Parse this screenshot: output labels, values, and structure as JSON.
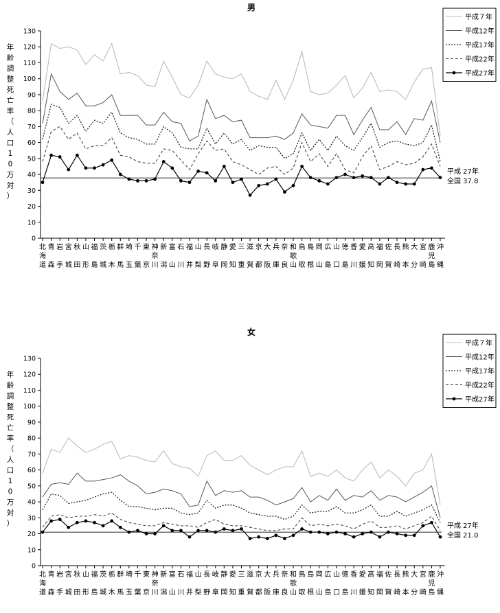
{
  "prefectures": [
    "北海道",
    "青森",
    "岩手",
    "宮城",
    "秋田",
    "山形",
    "福島",
    "茨城",
    "栃木",
    "群馬",
    "埼玉",
    "千葉",
    "東京",
    "神奈川",
    "新潟",
    "富山",
    "石川",
    "福井",
    "山梨",
    "長野",
    "岐阜",
    "静岡",
    "愛知",
    "三重",
    "滋賀",
    "京都",
    "大阪",
    "兵庫",
    "奈良",
    "和歌山",
    "鳥取",
    "島根",
    "岡山",
    "広島",
    "山口",
    "徳島",
    "香川",
    "愛媛",
    "高知",
    "福岡",
    "佐賀",
    "長崎",
    "熊本",
    "大分",
    "宮崎",
    "鹿児島",
    "沖縄"
  ],
  "chart_data": [
    {
      "type": "line",
      "title": "男",
      "ylabel": "年齢調整死亡率（人口10万対）",
      "ylim": [
        0,
        130
      ],
      "yticks": [
        0,
        10,
        20,
        30,
        40,
        50,
        60,
        70,
        80,
        90,
        100,
        110,
        120,
        130
      ],
      "grid": false,
      "legend_position": "top-right",
      "reference": {
        "value": 37.8,
        "line1": "平成 27年",
        "line2": "全国 37.8"
      },
      "series": [
        {
          "name": "平成７年",
          "style": "h7",
          "values": [
            86,
            122,
            119,
            120,
            118,
            109,
            115,
            111,
            122,
            103,
            104,
            102,
            96,
            95,
            111,
            101,
            90,
            88,
            96,
            111,
            103,
            101,
            100,
            103,
            92,
            89,
            87,
            99,
            87,
            99,
            117,
            92,
            90,
            91,
            96,
            102,
            88,
            94,
            104,
            92,
            93,
            92,
            87,
            98,
            106,
            107,
            64
          ]
        },
        {
          "name": "平成12年",
          "style": "h12",
          "values": [
            72,
            103,
            92,
            87,
            91,
            83,
            83,
            85,
            90,
            77,
            77,
            77,
            71,
            71,
            79,
            73,
            72,
            61,
            64,
            87,
            75,
            77,
            73,
            74,
            63,
            63,
            63,
            64,
            62,
            66,
            78,
            71,
            70,
            69,
            77,
            77,
            65,
            74,
            82,
            68,
            68,
            73,
            65,
            75,
            74,
            86,
            60
          ]
        },
        {
          "name": "平成17年",
          "style": "h17",
          "values": [
            62,
            84,
            82,
            72,
            77,
            67,
            74,
            72,
            79,
            66,
            63,
            62,
            59,
            59,
            70,
            66,
            57,
            56,
            56,
            69,
            59,
            66,
            59,
            62,
            55,
            58,
            57,
            57,
            50,
            53,
            66,
            55,
            62,
            55,
            64,
            58,
            55,
            63,
            72,
            57,
            60,
            61,
            59,
            58,
            60,
            71,
            48
          ]
        },
        {
          "name": "平成22年",
          "style": "h22",
          "values": [
            48,
            67,
            70,
            62,
            66,
            56,
            58,
            58,
            63,
            52,
            51,
            48,
            47,
            47,
            56,
            55,
            49,
            43,
            53,
            61,
            55,
            56,
            48,
            46,
            43,
            40,
            44,
            45,
            40,
            44,
            60,
            48,
            53,
            45,
            53,
            43,
            41,
            51,
            58,
            43,
            45,
            48,
            46,
            47,
            51,
            59,
            45
          ]
        },
        {
          "name": "平成27年",
          "style": "h27",
          "values": [
            35,
            52,
            51,
            43,
            52,
            44,
            44,
            46,
            49,
            40,
            37,
            36,
            36,
            37,
            48,
            44,
            36,
            35,
            42,
            41,
            36,
            45,
            35,
            37,
            27,
            33,
            34,
            37,
            29,
            33,
            45,
            38,
            36,
            34,
            38,
            40,
            38,
            39,
            38,
            34,
            38,
            35,
            34,
            34,
            43,
            44,
            38
          ]
        }
      ]
    },
    {
      "type": "line",
      "title": "女",
      "ylabel": "年齢調整死亡率（人口10万対）",
      "ylim": [
        0,
        130
      ],
      "yticks": [
        0,
        10,
        20,
        30,
        40,
        50,
        60,
        70,
        80,
        90,
        100,
        110,
        120,
        130
      ],
      "grid": false,
      "legend_position": "top-right",
      "reference": {
        "value": 21.0,
        "line1": "平成 27年",
        "line2": "全国 21.0"
      },
      "series": [
        {
          "name": "平成７年",
          "style": "h7",
          "values": [
            58,
            73,
            71,
            80,
            75,
            71,
            73,
            76,
            78,
            67,
            69,
            68,
            66,
            65,
            72,
            64,
            62,
            61,
            56,
            69,
            72,
            66,
            66,
            69,
            63,
            60,
            57,
            60,
            62,
            62,
            72,
            56,
            58,
            56,
            60,
            55,
            53,
            60,
            65,
            55,
            60,
            56,
            50,
            58,
            60,
            70,
            38
          ]
        },
        {
          "name": "平成12年",
          "style": "h12",
          "values": [
            43,
            51,
            52,
            51,
            58,
            53,
            53,
            54,
            55,
            57,
            53,
            50,
            45,
            46,
            48,
            47,
            45,
            37,
            38,
            53,
            44,
            47,
            46,
            47,
            43,
            43,
            41,
            38,
            40,
            42,
            49,
            40,
            44,
            41,
            48,
            41,
            44,
            43,
            47,
            41,
            44,
            43,
            40,
            43,
            46,
            50,
            30
          ]
        },
        {
          "name": "平成17年",
          "style": "h17",
          "values": [
            35,
            45,
            44,
            39,
            40,
            41,
            43,
            45,
            46,
            41,
            37,
            37,
            36,
            35,
            36,
            36,
            33,
            32,
            33,
            41,
            36,
            38,
            38,
            36,
            33,
            32,
            31,
            31,
            29,
            31,
            38,
            33,
            34,
            34,
            37,
            33,
            33,
            35,
            38,
            31,
            31,
            34,
            31,
            33,
            35,
            38,
            27
          ]
        },
        {
          "name": "平成22年",
          "style": "h22",
          "values": [
            24,
            31,
            32,
            30,
            31,
            31,
            32,
            31,
            33,
            29,
            27,
            26,
            25,
            25,
            27,
            26,
            25,
            25,
            24,
            27,
            29,
            26,
            25,
            25,
            24,
            23,
            22,
            22,
            23,
            23,
            30,
            25,
            26,
            25,
            26,
            25,
            23,
            26,
            28,
            24,
            24,
            25,
            23,
            25,
            27,
            31,
            22
          ]
        },
        {
          "name": "平成27年",
          "style": "h27",
          "values": [
            21,
            28,
            29,
            24,
            27,
            28,
            27,
            25,
            28,
            24,
            21,
            22,
            20,
            20,
            25,
            22,
            22,
            18,
            22,
            22,
            21,
            23,
            22,
            23,
            17,
            18,
            17,
            19,
            17,
            19,
            23,
            21,
            21,
            20,
            21,
            20,
            18,
            20,
            21,
            18,
            21,
            20,
            19,
            19,
            25,
            27,
            18
          ]
        }
      ]
    }
  ]
}
